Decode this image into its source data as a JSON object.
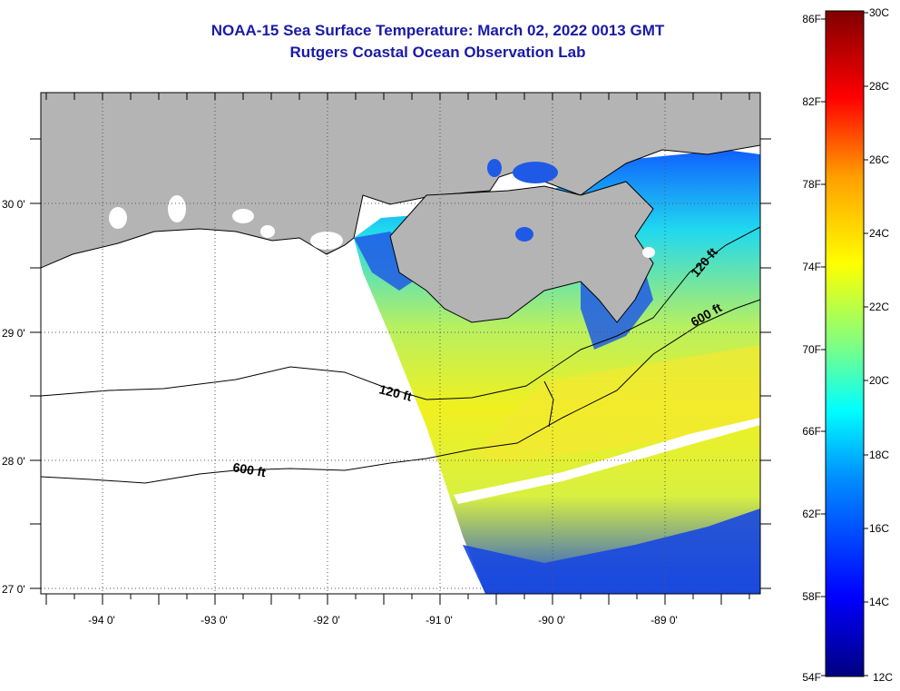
{
  "header": {
    "title": "NOAA-15 Sea Surface Temperature:  March 02, 2022 0013 GMT",
    "subtitle": "Rutgers Coastal Ocean Observation Lab"
  },
  "map": {
    "latitude_labels": [
      "30 0'",
      "29 0'",
      "28 0'",
      "27 0'"
    ],
    "longitude_labels": [
      "-94 0'",
      "-93 0'",
      "-92 0'",
      "-91 0'",
      "-90 0'",
      "-89 0'"
    ],
    "isobath_labels": [
      "120 ft",
      "600 ft",
      "120 ft",
      "600 ft"
    ],
    "colors": {
      "land": "#b4b4b4",
      "no_data": "#ffffff",
      "coastline": "#000000"
    }
  },
  "colorbar": {
    "fahrenheit_labels": [
      "86F",
      "82F",
      "78F",
      "74F",
      "70F",
      "66F",
      "62F",
      "58F",
      "54F"
    ],
    "celsius_labels": [
      "30C",
      "28C",
      "26C",
      "24C",
      "22C",
      "20C",
      "18C",
      "16C",
      "14C",
      "12C"
    ],
    "range_f": [
      54,
      86
    ],
    "range_c": [
      12,
      30
    ],
    "colors": [
      "#000080",
      "#0000ff",
      "#0080ff",
      "#00ffff",
      "#80ff80",
      "#ffff00",
      "#ff8000",
      "#ff0000",
      "#800000"
    ]
  }
}
